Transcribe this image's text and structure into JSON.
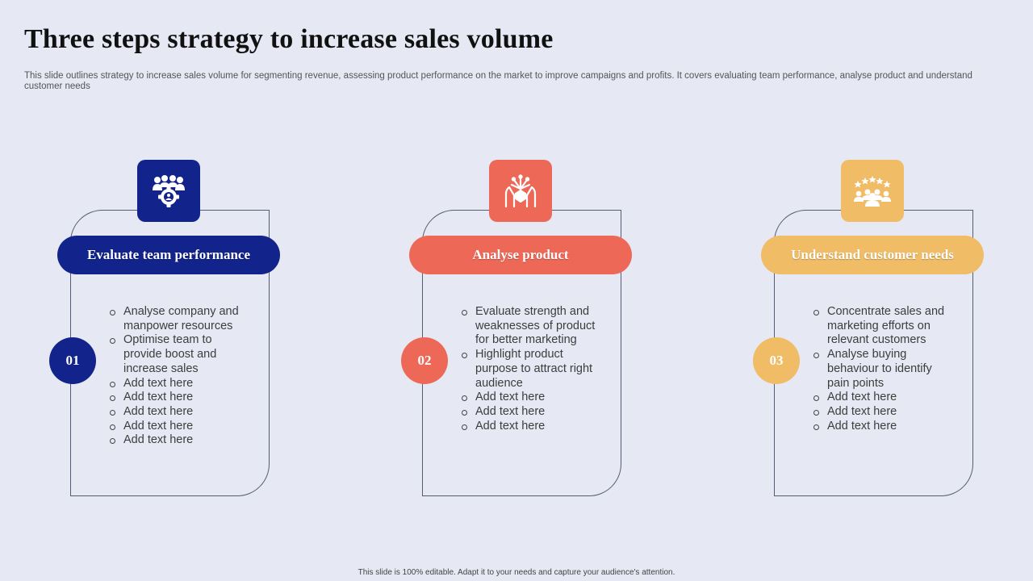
{
  "title": "Three steps strategy to increase sales volume",
  "subtitle": "This slide outlines strategy to increase sales volume for segmenting revenue, assessing product performance on the market to improve campaigns and profits. It covers evaluating team performance, analyse product and understand customer needs",
  "footer": "This slide is 100% editable. Adapt it to your needs and capture your audience's attention.",
  "colors": {
    "blue": "#13238c",
    "red": "#ee6857",
    "gold": "#f0bc66",
    "background": "#e6e8f3"
  },
  "steps": [
    {
      "number": "01",
      "heading": "Evaluate team performance",
      "icon": "team-gear-icon",
      "items": [
        "Analyse company and manpower resources",
        "Optimise team to provide boost and increase sales",
        "Add text here",
        "Add text here",
        "Add text here",
        "Add text here",
        "Add text here"
      ]
    },
    {
      "number": "02",
      "heading": "Analyse product",
      "icon": "hands-box-icon",
      "items": [
        "Evaluate strength and weaknesses of product for better marketing",
        "Highlight product purpose to attract right audience",
        "Add text here",
        "Add text here",
        "Add text here"
      ]
    },
    {
      "number": "03",
      "heading": "Understand customer needs",
      "icon": "customer-rating-icon",
      "items": [
        "Concentrate sales and marketing efforts on relevant customers",
        "Analyse buying behaviour to identify pain points",
        "Add text here",
        "Add text here",
        "Add text here"
      ]
    }
  ]
}
